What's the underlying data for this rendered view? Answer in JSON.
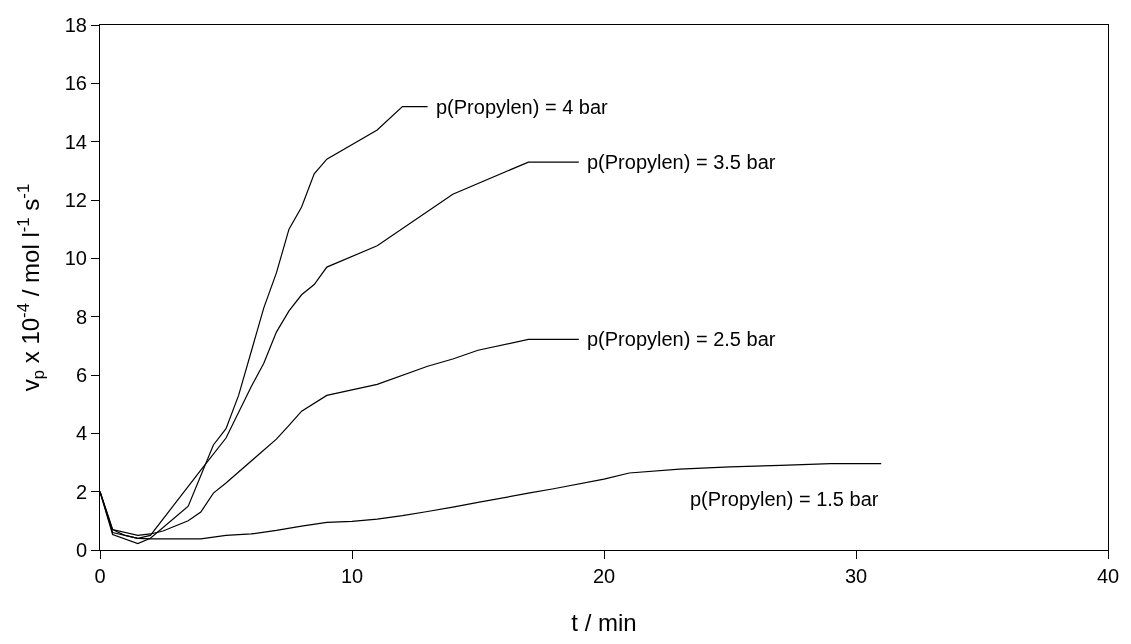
{
  "chart_data": {
    "type": "line",
    "xlabel": "t / min",
    "ylabel": "v$_{p}$ x 10$^{-4}$ / mol l$^{-1}$ s$^{-1}$",
    "xlim": [
      0,
      40
    ],
    "xticks": [
      0,
      10,
      20,
      30,
      40
    ],
    "ylim": [
      0,
      18
    ],
    "yticks": [
      0,
      2,
      4,
      6,
      8,
      10,
      12,
      14,
      16,
      18
    ],
    "legend": false,
    "marker": "none",
    "line_style": "solid",
    "series": [
      {
        "name": "p(Propylen) = 4 bar",
        "color": "#000000",
        "x": [
          0,
          0.5,
          1.5,
          2,
          3.5,
          4.5,
          5,
          5.5,
          6.5,
          7,
          7.5,
          8,
          8.5,
          9,
          11,
          12,
          13
        ],
        "values": [
          2,
          0.53,
          0.22,
          0.4,
          1.5,
          3.6,
          4.16,
          5.3,
          8.3,
          9.5,
          11.0,
          11.76,
          12.9,
          13.4,
          14.4,
          15.2,
          15.2
        ]
      },
      {
        "name": "p(Propylen) = 3.5 bar",
        "color": "#000000",
        "x": [
          0,
          0.5,
          1.5,
          2,
          4,
          5,
          6,
          6.5,
          7,
          7.5,
          8,
          8.5,
          9,
          11,
          14,
          17,
          19
        ],
        "values": [
          2,
          0.6,
          0.4,
          0.5,
          2.74,
          3.84,
          5.6,
          6.4,
          7.47,
          8.2,
          8.75,
          9.1,
          9.7,
          10.43,
          12.2,
          13.3,
          13.3
        ]
      },
      {
        "name": "p(Propylen) = 2.5 bar",
        "color": "#000000",
        "x": [
          0,
          0.5,
          1.5,
          2,
          2.5,
          3.5,
          4,
          4.5,
          5,
          7,
          7.5,
          8,
          9,
          11,
          13,
          14,
          15,
          17,
          19
        ],
        "values": [
          2,
          0.7,
          0.5,
          0.55,
          0.65,
          1.0,
          1.3,
          1.95,
          2.3,
          3.8,
          4.27,
          4.76,
          5.3,
          5.68,
          6.3,
          6.55,
          6.85,
          7.22,
          7.22
        ]
      },
      {
        "name": "p(Propylen) = 1.5 bar",
        "color": "#000000",
        "x": [
          0,
          0.5,
          1,
          1.5,
          2,
          4,
          5,
          6,
          7,
          8,
          9,
          10,
          11,
          12,
          13,
          14,
          15,
          17,
          18,
          20,
          21,
          23,
          25,
          27,
          29,
          31
        ],
        "values": [
          2,
          0.7,
          0.5,
          0.4,
          0.38,
          0.38,
          0.5,
          0.55,
          0.67,
          0.82,
          0.95,
          0.98,
          1.06,
          1.18,
          1.32,
          1.47,
          1.63,
          1.95,
          2.1,
          2.43,
          2.64,
          2.77,
          2.85,
          2.9,
          2.96,
          2.96
        ]
      }
    ]
  }
}
